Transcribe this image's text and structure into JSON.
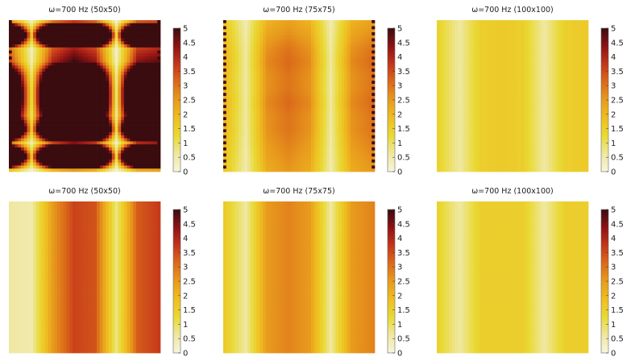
{
  "figure": {
    "colormap": "hot (inverted)",
    "colormap_stops": [
      "#f7f5dd",
      "#efe7a0",
      "#e9d935",
      "#efbe20",
      "#e89b1d",
      "#db6a1a",
      "#c4361b",
      "#8e1214",
      "#3a0c0f"
    ]
  },
  "chart_data": [
    {
      "type": "heatmap",
      "title": "ω=700 Hz (50x50)",
      "grid": "50x50",
      "value_range": [
        0,
        5
      ],
      "colorbar_ticks": [
        "0",
        "0.5",
        "1",
        "1.5",
        "2",
        "2.5",
        "3",
        "3.5",
        "4",
        "4.5",
        "5"
      ],
      "column_profile": [
        3.0,
        0.4,
        3.4,
        4.2,
        3.6,
        0.3,
        3.7,
        4.0
      ],
      "row_profile": [
        0.9,
        5.0,
        1.0,
        1.2,
        2.6,
        3.2,
        3.2,
        2.6,
        4.5,
        1.0,
        5.0,
        0.6
      ],
      "edge_artifacts": true
    },
    {
      "type": "heatmap",
      "title": "ω=700 Hz (75x75)",
      "grid": "75x75",
      "value_range": [
        0,
        5
      ],
      "colorbar_ticks": [
        "0",
        "0.5",
        "1",
        "1.5",
        "2",
        "2.5",
        "3",
        "3.5",
        "4",
        "4.5",
        "5"
      ],
      "column_profile": [
        2.0,
        0.6,
        2.6,
        3.0,
        2.6,
        0.6,
        2.6,
        3.0
      ],
      "row_profile": [
        0.8,
        0.9,
        1.0,
        1.05,
        1.0,
        1.0,
        1.05,
        1.0,
        1.0,
        0.95,
        0.9,
        0.85
      ],
      "edge_artifacts": true
    },
    {
      "type": "heatmap",
      "title": "ω=700 Hz (100x100)",
      "grid": "100x100",
      "value_range": [
        0,
        5
      ],
      "colorbar_ticks": [
        "0",
        "0.5",
        "1",
        "1.5",
        "2",
        "2.5",
        "3",
        "3.5",
        "4",
        "4.5",
        "5"
      ],
      "column_profile": [
        1.4,
        0.6,
        1.5,
        1.6,
        1.5,
        0.6,
        1.5,
        1.6
      ],
      "row_profile": [
        1,
        1,
        1,
        1,
        1,
        1,
        1,
        1,
        1,
        1,
        1,
        1
      ],
      "edge_artifacts": false
    },
    {
      "type": "heatmap",
      "title": "ω=700 Hz (50x50)",
      "grid": "50x50",
      "value_range": [
        0,
        5
      ],
      "colorbar_ticks": [
        "0",
        "0.5",
        "1",
        "1.5",
        "2",
        "2.5",
        "3",
        "3.5",
        "4",
        "4.5",
        "5"
      ],
      "column_profile": [
        0.6,
        0.5,
        2.5,
        3.6,
        3.4,
        0.8,
        3.3,
        3.7
      ],
      "row_profile": [
        1,
        1,
        1,
        1,
        1,
        1,
        1,
        1,
        1,
        1,
        1,
        1
      ],
      "edge_artifacts": false
    },
    {
      "type": "heatmap",
      "title": "ω=700 Hz (75x75)",
      "grid": "75x75",
      "value_range": [
        0,
        5
      ],
      "colorbar_ticks": [
        "0",
        "0.5",
        "1",
        "1.5",
        "2",
        "2.5",
        "3",
        "3.5",
        "4",
        "4.5",
        "5"
      ],
      "column_profile": [
        1.6,
        0.6,
        2.5,
        2.8,
        2.5,
        0.6,
        2.5,
        2.8
      ],
      "row_profile": [
        1,
        1,
        1,
        1,
        1,
        1,
        1,
        1,
        1,
        1,
        1,
        1
      ],
      "edge_artifacts": false
    },
    {
      "type": "heatmap",
      "title": "ω=700 Hz (100x100)",
      "grid": "100x100",
      "value_range": [
        0,
        5
      ],
      "colorbar_ticks": [
        "0",
        "0.5",
        "1",
        "1.5",
        "2",
        "2.5",
        "3",
        "3.5",
        "4",
        "4.5",
        "5"
      ],
      "column_profile": [
        1.4,
        0.6,
        1.5,
        1.5,
        1.5,
        0.6,
        1.5,
        1.5
      ],
      "row_profile": [
        1,
        1,
        1,
        1,
        1,
        1,
        1,
        1,
        1,
        1,
        1,
        1
      ],
      "edge_artifacts": false
    }
  ]
}
